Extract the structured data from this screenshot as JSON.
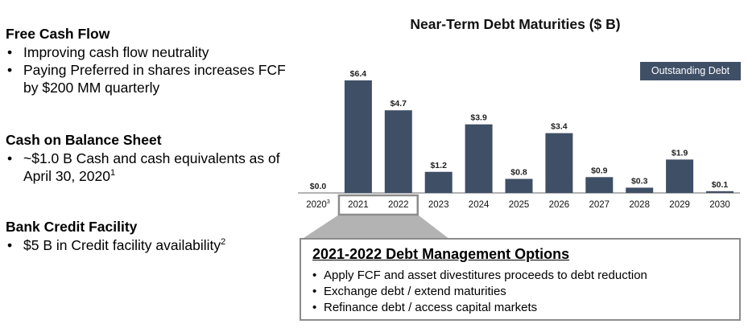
{
  "left_panel": {
    "sections": [
      {
        "heading": "Free Cash Flow",
        "bullets": [
          {
            "text": "Improving cash flow neutrality",
            "sup": ""
          },
          {
            "text": "Paying Preferred in shares increases FCF by $200 MM quarterly",
            "sup": ""
          }
        ]
      },
      {
        "heading": "Cash on Balance Sheet",
        "bullets": [
          {
            "text": "~$1.0 B Cash and cash equivalents as of April 30, 2020",
            "sup": "1"
          }
        ]
      },
      {
        "heading": "Bank Credit Facility",
        "bullets": [
          {
            "text": "$5 B in Credit facility availability",
            "sup": "2"
          }
        ]
      }
    ],
    "bullet_char": "•"
  },
  "chart_data": {
    "type": "bar",
    "title": "Near-Term Debt Maturities ($ B)",
    "legend": {
      "label": "Outstanding Debt",
      "placement": "top-right"
    },
    "categories": [
      "2020",
      "2021",
      "2022",
      "2023",
      "2024",
      "2025",
      "2026",
      "2027",
      "2028",
      "2029",
      "2030"
    ],
    "category_superscripts": {
      "2020": "3"
    },
    "series": [
      {
        "name": "Outstanding Debt",
        "values": [
          0.0,
          6.4,
          4.7,
          1.2,
          3.9,
          0.8,
          3.4,
          0.9,
          0.3,
          1.9,
          0.1
        ],
        "labels": [
          "$0.0",
          "$6.4",
          "$4.7",
          "$1.2",
          "$3.9",
          "$0.8",
          "$3.4",
          "$0.9",
          "$0.3",
          "$1.9",
          "$0.1"
        ]
      }
    ],
    "highlighted_categories": [
      "2021",
      "2022"
    ],
    "xlabel": "",
    "ylabel": "",
    "ylim": [
      0,
      6.4
    ],
    "grid": false,
    "colors": {
      "bar": "#3f4f66",
      "highlight_border": "#8c8c8c",
      "callout_fill": "#b3b3b3"
    }
  },
  "options_box": {
    "title": "2021-2022 Debt Management Options",
    "items": [
      "Apply FCF and asset divestitures proceeds to debt reduction",
      "Exchange debt / extend maturities",
      "Refinance debt / access capital markets"
    ]
  }
}
